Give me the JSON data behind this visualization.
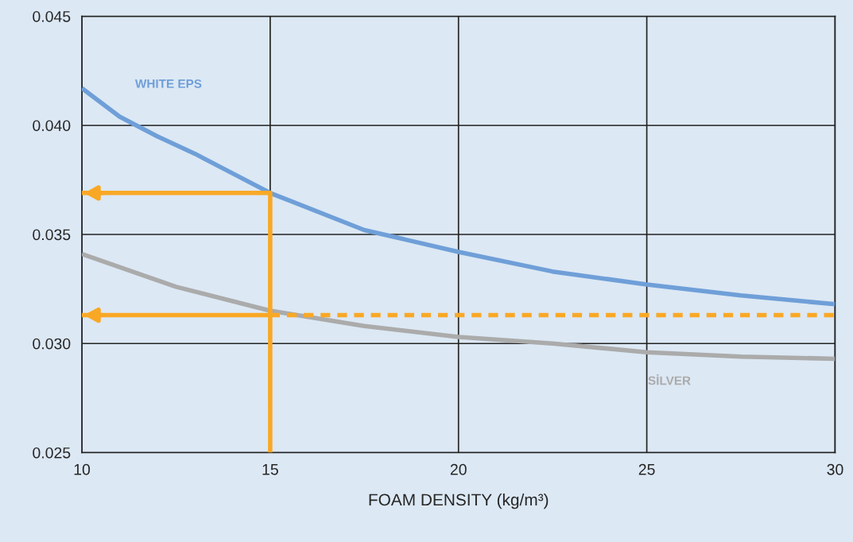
{
  "chart_data": {
    "type": "line",
    "xlabel": "FOAM DENSITY (kg/m³)",
    "xlim": [
      10,
      30
    ],
    "xticks": [
      10,
      15,
      20,
      25,
      30
    ],
    "ylim": [
      0.025,
      0.045
    ],
    "yticks": [
      {
        "value": 0.025,
        "label": "0.025"
      },
      {
        "value": 0.03,
        "label": "0.030"
      },
      {
        "value": 0.035,
        "label": "0.035"
      },
      {
        "value": 0.04,
        "label": "0.040"
      },
      {
        "value": 0.045,
        "label": "0.045"
      }
    ],
    "grid": true,
    "marker": "none",
    "series": [
      {
        "name": "WHITE EPS",
        "color": "#6f9fd8",
        "x": [
          10,
          11,
          12,
          13,
          14,
          15,
          17.5,
          20,
          22.5,
          25,
          27.5,
          30
        ],
        "values": [
          0.0417,
          0.0404,
          0.0395,
          0.0387,
          0.0378,
          0.0369,
          0.0352,
          0.0342,
          0.0333,
          0.0327,
          0.0322,
          0.0318
        ]
      },
      {
        "name": "SİLVER",
        "color": "#ababab",
        "x": [
          10,
          12.5,
          15,
          17.5,
          20,
          22.5,
          25,
          27.5,
          30
        ],
        "values": [
          0.0341,
          0.0326,
          0.0315,
          0.0308,
          0.0303,
          0.03,
          0.0296,
          0.0294,
          0.0293
        ]
      },
      {
        "color": "#f9a825",
        "x": [
          10,
          15,
          15
        ],
        "values": [
          0.0369,
          0.0369,
          0.025
        ]
      },
      {
        "color": "#f9a825",
        "x": [
          10,
          15
        ],
        "values": [
          0.0313,
          0.0313
        ]
      },
      {
        "color": "#f9a825",
        "line_style": "dashed",
        "x": [
          15,
          30
        ],
        "values": [
          0.0313,
          0.0313
        ]
      }
    ]
  }
}
